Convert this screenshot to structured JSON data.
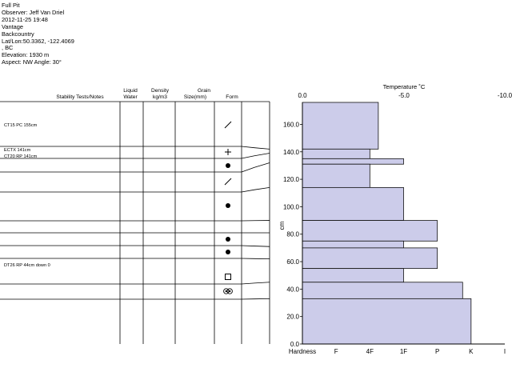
{
  "header": {
    "lines": [
      "Full Pit",
      "Observer: Jeff Van Driel",
      "2012-11-25 19:48",
      "Vantage",
      "Backcountry",
      "Lat/Lon:50.3362, -122.4069",
      ", BC",
      "Elevation: 1930 m",
      "Aspect: NW Angle: 30°"
    ]
  },
  "table": {
    "headers": {
      "stability": "Stability Tests/Notes",
      "liquid_line1": "Liquid",
      "liquid_line2": "Water",
      "density_line1": "Density",
      "density_line2": "kg/m3",
      "grain_line1": "Grain",
      "grain_line2": "Size(mm)",
      "form": "Form"
    },
    "notes": [
      {
        "text": "CT15 PC 155cm",
        "height_cm": 155
      },
      {
        "text": "ECTX 141cm",
        "height_cm": 141
      },
      {
        "text": "CT20 RP 141cm",
        "height_cm": 141
      },
      {
        "text": "DT26 RP 44cm down 0",
        "height_cm": 44
      }
    ],
    "layers": [
      {
        "top": 176,
        "bottom": 142,
        "form": "decomposing"
      },
      {
        "top": 142,
        "bottom": 139,
        "form": "precipitation"
      },
      {
        "top": 139,
        "bottom": 132,
        "form": "rounded"
      },
      {
        "top": 132,
        "bottom": 114,
        "form": "decomposing"
      },
      {
        "top": 114,
        "bottom": 90,
        "form": "rounded"
      },
      {
        "top": 90,
        "bottom": 81,
        "form": "none"
      },
      {
        "top": 81,
        "bottom": 71,
        "form": "rounded"
      },
      {
        "top": 71,
        "bottom": 62,
        "form": "rounded"
      },
      {
        "top": 62,
        "bottom": 45,
        "form": "none"
      },
      {
        "top": 45,
        "bottom": 35,
        "form": "faceted"
      },
      {
        "top": 35,
        "bottom": 33,
        "form": "melt-forms"
      }
    ]
  },
  "chart_data": {
    "type": "bar",
    "orientation": "horizontal",
    "title": "Temperature ˚C",
    "ylabel": "cm",
    "xlabel": "Hardness",
    "ylim": [
      0,
      176
    ],
    "y_ticks": [
      0,
      20,
      40,
      60,
      80,
      100,
      120,
      140,
      160
    ],
    "y_tick_labels": [
      "0.0",
      "20.0",
      "40.0",
      "60.0",
      "80.0",
      "100.0",
      "120.0",
      "140.0",
      "160.0"
    ],
    "temperature_ticks": [
      "0.0",
      "-5.0",
      "-10.0"
    ],
    "hardness_categories": [
      "Hardness",
      "F",
      "4F",
      "1F",
      "P",
      "K",
      "I"
    ],
    "hardness_scale": [
      0,
      1,
      2,
      3,
      4,
      5,
      6
    ],
    "bars": [
      {
        "top": 176,
        "bottom": 142,
        "hardness": 2.25
      },
      {
        "top": 142,
        "bottom": 135,
        "hardness": 2.0
      },
      {
        "top": 135,
        "bottom": 131,
        "hardness": 3.0
      },
      {
        "top": 131,
        "bottom": 114,
        "hardness": 2.0
      },
      {
        "top": 114,
        "bottom": 90,
        "hardness": 3.0
      },
      {
        "top": 90,
        "bottom": 75,
        "hardness": 4.0
      },
      {
        "top": 75,
        "bottom": 70,
        "hardness": 3.0
      },
      {
        "top": 70,
        "bottom": 55,
        "hardness": 4.0
      },
      {
        "top": 55,
        "bottom": 45,
        "hardness": 3.0
      },
      {
        "top": 45,
        "bottom": 33,
        "hardness": 4.75
      },
      {
        "top": 33,
        "bottom": 0,
        "hardness": 5.0
      }
    ],
    "colors": {
      "fill": "#ccccea",
      "stroke": "#111111"
    }
  }
}
